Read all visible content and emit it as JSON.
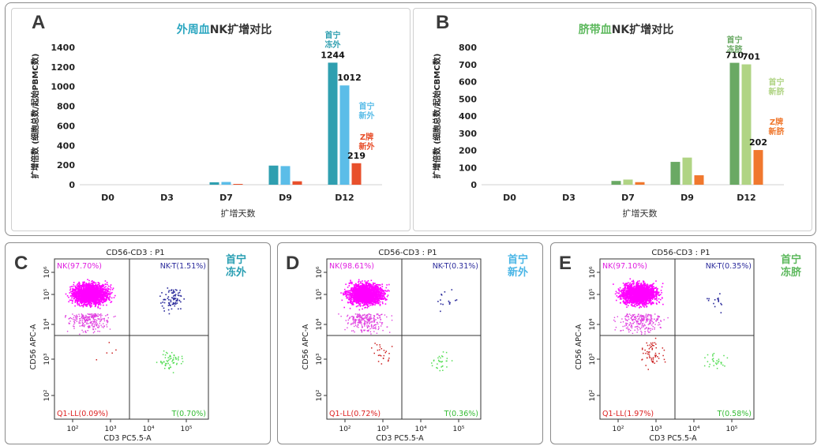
{
  "chart_data": [
    {
      "type": "bar",
      "panel": "A",
      "title": "外周血NK扩增对比",
      "xlabel": "扩增天数",
      "ylabel": "扩增倍数 (细胞总数/起始PBMC数)",
      "ylim": [
        0,
        1400
      ],
      "yticks": [
        0,
        200,
        400,
        600,
        800,
        1000,
        1200,
        1400
      ],
      "categories": [
        "D0",
        "D3",
        "D7",
        "D9",
        "D12"
      ],
      "series": [
        {
          "name": "首宁冻外",
          "color": "#2f9fb0",
          "values": [
            0,
            0,
            25,
            195,
            1244
          ]
        },
        {
          "name": "首宁新外",
          "color": "#5bbde8",
          "values": [
            0,
            0,
            28,
            190,
            1012
          ]
        },
        {
          "name": "Z牌新外",
          "color": "#e8502c",
          "values": [
            0,
            0,
            8,
            35,
            219
          ]
        }
      ],
      "data_labels": [
        "1244",
        "1012",
        "219"
      ],
      "series_labels": [
        {
          "line1": "首宁",
          "line2": "冻外"
        },
        {
          "line1": "首宁",
          "line2": "新外"
        },
        {
          "line1": "Z牌",
          "line2": "新外"
        }
      ]
    },
    {
      "type": "bar",
      "panel": "B",
      "title": "脐带血NK扩增对比",
      "xlabel": "扩增天数",
      "ylabel": "扩增倍数 (细胞总数/起始CBMC数)",
      "ylim": [
        0,
        800
      ],
      "yticks": [
        0,
        100,
        200,
        300,
        400,
        500,
        600,
        700,
        800
      ],
      "categories": [
        "D0",
        "D3",
        "D7",
        "D9",
        "D12"
      ],
      "series": [
        {
          "name": "首宁冻脐",
          "color": "#6aa964",
          "values": [
            0,
            0,
            22,
            133,
            710
          ]
        },
        {
          "name": "首宁新脐",
          "color": "#b0d484",
          "values": [
            0,
            0,
            30,
            158,
            701
          ]
        },
        {
          "name": "Z牌新脐",
          "color": "#f0782e",
          "values": [
            0,
            0,
            15,
            55,
            202
          ]
        }
      ],
      "data_labels": [
        "710",
        "701",
        "202"
      ],
      "series_labels": [
        {
          "line1": "首宁",
          "line2": "冻脐"
        },
        {
          "line1": "首宁",
          "line2": "新脐"
        },
        {
          "line1": "Z牌",
          "line2": "新脐"
        }
      ]
    },
    {
      "type": "scatter",
      "panel": "C",
      "title": "CD56-CD3 : P1",
      "sample_label": {
        "line1": "首宁",
        "line2": "冻外",
        "color": "#2a9fb3"
      },
      "xlabel": "CD3 PC5.5-A",
      "ylabel": "CD56 APC-A",
      "log_scale": true,
      "x_ticks": [
        "10²",
        "10³",
        "10⁴",
        "10⁵"
      ],
      "y_ticks": [
        "10²",
        "10³",
        "10⁴",
        "10⁵",
        "10⁶"
      ],
      "quadrants": {
        "NK": "NK(97.70%)",
        "NK_T": "NK-T(1.51%)",
        "Q1_LL": "Q1-LL(0.09%)",
        "T": "T(0.70%)"
      }
    },
    {
      "type": "scatter",
      "panel": "D",
      "title": "CD56-CD3 : P1",
      "sample_label": {
        "line1": "首宁",
        "line2": "新外",
        "color": "#4bb6e6"
      },
      "xlabel": "CD3 PC5.5-A",
      "ylabel": "CD56 APC-A",
      "log_scale": true,
      "x_ticks": [
        "10²",
        "10³",
        "10⁴",
        "10⁵"
      ],
      "y_ticks": [
        "10²",
        "10³",
        "10⁴",
        "10⁵",
        "10⁶"
      ],
      "quadrants": {
        "NK": "NK(98.61%)",
        "NK_T": "NK-T(0.31%)",
        "Q1_LL": "Q1-LL(0.72%)",
        "T": "T(0.36%)"
      }
    },
    {
      "type": "scatter",
      "panel": "E",
      "title": "CD56-CD3 : P1",
      "sample_label": {
        "line1": "首宁",
        "line2": "冻脐",
        "color": "#5cb85c"
      },
      "xlabel": "CD3 PC5.5-A",
      "ylabel": "CD56 APC-A",
      "log_scale": true,
      "x_ticks": [
        "10²",
        "10³",
        "10⁴",
        "10⁵"
      ],
      "y_ticks": [
        "10²",
        "10³",
        "10⁴",
        "10⁵",
        "10⁶"
      ],
      "quadrants": {
        "NK": "NK(97.10%)",
        "NK_T": "NK-T(0.35%)",
        "Q1_LL": "Q1-LL(1.97%)",
        "T": "T(0.58%)"
      }
    }
  ],
  "panel_letters": {
    "a": "A",
    "b": "B",
    "c": "C",
    "d": "D",
    "e": "E"
  }
}
